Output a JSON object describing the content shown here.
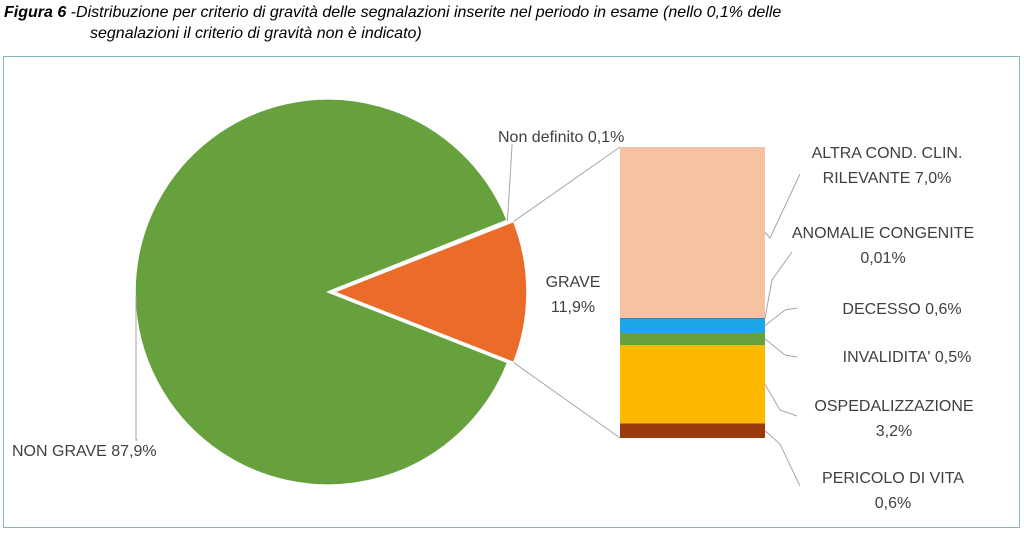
{
  "caption": {
    "figure_label": "Figura 6",
    "text_line1": " -Distribuzione per criterio di gravità delle segnalazioni inserite nel periodo in esame (nello 0,1% delle",
    "text_line2": "segnalazioni il criterio di gravità non è indicato)"
  },
  "chart_data": {
    "type": "pie",
    "subtype": "bar-of-pie",
    "pie": {
      "slices": [
        {
          "label": "NON GRAVE 87,9%",
          "name": "NON GRAVE",
          "value": 87.9,
          "color": "#67a13e"
        },
        {
          "label": "Non definito 0,1%",
          "name": "Non definito",
          "value": 0.1,
          "color": "#f4a463"
        },
        {
          "label": "GRAVE 11,9%",
          "name": "GRAVE",
          "value": 11.9,
          "color": "#ea6c28",
          "exploded": true
        }
      ]
    },
    "bar": {
      "parent": "GRAVE",
      "segments": [
        {
          "label": "PERICOLO DI VITA 0,6%",
          "value": 0.6,
          "color": "#9b3b0c"
        },
        {
          "label": "OSPEDALIZZAZIONE 3,2%",
          "value": 3.2,
          "color": "#fdb800"
        },
        {
          "label": "INVALIDITA' 0,5%",
          "value": 0.5,
          "color": "#67a13e"
        },
        {
          "label": "DECESSO 0,6%",
          "value": 0.6,
          "color": "#1ba6e8"
        },
        {
          "label": "ANOMALIE CONGENITE 0,01%",
          "value": 0.01,
          "color": "#3f5fb5"
        },
        {
          "label": "ALTRA COND. CLIN. RILEVANTE 7,0%",
          "value": 7.0,
          "color": "#f6c2a3"
        }
      ]
    },
    "labels": {
      "non_grave": "NON GRAVE 87,9%",
      "non_definito": "Non definito 0,1%",
      "grave_1": "GRAVE",
      "grave_2": "11,9%",
      "altra_1": "ALTRA COND. CLIN.",
      "altra_2": "RILEVANTE 7,0%",
      "anomalie_1": "ANOMALIE CONGENITE",
      "anomalie_2": "0,01%",
      "decesso": "DECESSO 0,6%",
      "invalidita": "INVALIDITA' 0,5%",
      "ospedal_1": "OSPEDALIZZAZIONE",
      "ospedal_2": "3,2%",
      "pericolo_1": "PERICOLO DI VITA",
      "pericolo_2": "0,6%"
    }
  }
}
